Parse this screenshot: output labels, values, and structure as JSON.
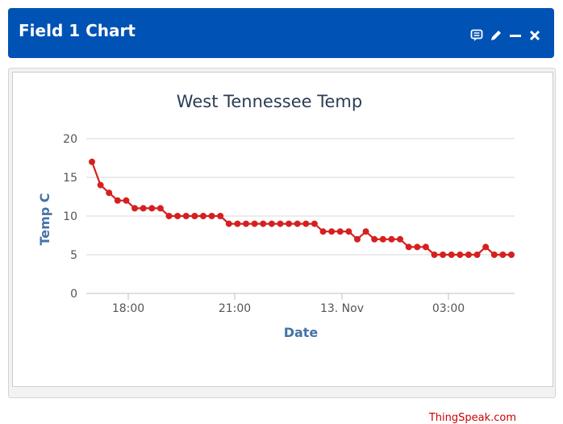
{
  "header": {
    "title": "Field 1 Chart",
    "icons": [
      "comment-icon",
      "pencil-icon",
      "minimize-icon",
      "close-icon"
    ]
  },
  "colors": {
    "header_bg": "#0052b4",
    "series": "#d62020",
    "title": "#2b3d55",
    "axis_title": "#4572a7"
  },
  "credit": "ThingSpeak.com",
  "chart_data": {
    "type": "line",
    "title": "West Tennessee Temp",
    "xlabel": "Date",
    "ylabel": "Temp C",
    "x_ticks": [
      "18:00",
      "21:00",
      "13. Nov",
      "03:00"
    ],
    "y_ticks": [
      0,
      5,
      10,
      15,
      20
    ],
    "ylim": [
      0,
      20
    ],
    "grid": true,
    "series": [
      {
        "values": [
          17,
          14,
          13,
          12,
          12,
          11,
          11,
          11,
          11,
          10,
          10,
          10,
          10,
          10,
          10,
          10,
          9,
          9,
          9,
          9,
          9,
          9,
          9,
          9,
          9,
          9,
          9,
          8,
          8,
          8,
          8,
          7,
          8,
          7,
          7,
          7,
          7,
          6,
          6,
          6,
          5,
          5,
          5,
          5,
          5,
          5,
          6,
          5,
          5,
          5
        ]
      }
    ]
  }
}
